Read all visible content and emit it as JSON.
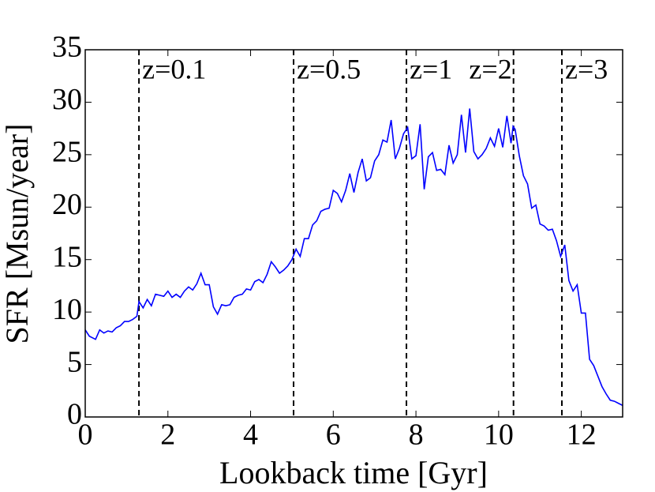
{
  "chart_data": {
    "type": "line",
    "x_label": "Lookback time [Gyr]",
    "y_label": "SFR [Msun/year]",
    "xlim": [
      0,
      13
    ],
    "ylim": [
      0,
      35
    ],
    "xticks": [
      0,
      2,
      4,
      6,
      8,
      10,
      12
    ],
    "yticks": [
      0,
      5,
      10,
      15,
      20,
      25,
      30,
      35
    ],
    "vlines": [
      {
        "x": 1.3,
        "label": "z=0.1"
      },
      {
        "x": 5.04,
        "label": "z=0.5"
      },
      {
        "x": 7.77,
        "label": "z=1"
      },
      {
        "x": 10.36,
        "label": "z=2"
      },
      {
        "x": 11.53,
        "label": "z=3"
      }
    ],
    "x": [
      0.0,
      0.1,
      0.25,
      0.35,
      0.45,
      0.55,
      0.65,
      0.75,
      0.85,
      0.95,
      1.05,
      1.15,
      1.25,
      1.3,
      1.4,
      1.5,
      1.6,
      1.7,
      1.8,
      1.9,
      2.0,
      2.1,
      2.2,
      2.3,
      2.4,
      2.5,
      2.6,
      2.7,
      2.8,
      2.9,
      3.0,
      3.1,
      3.2,
      3.3,
      3.4,
      3.5,
      3.6,
      3.7,
      3.8,
      3.9,
      4.0,
      4.1,
      4.2,
      4.3,
      4.4,
      4.5,
      4.6,
      4.7,
      4.8,
      4.9,
      5.0,
      5.1,
      5.2,
      5.3,
      5.4,
      5.5,
      5.6,
      5.7,
      5.8,
      5.9,
      6.0,
      6.1,
      6.2,
      6.3,
      6.4,
      6.5,
      6.6,
      6.7,
      6.8,
      6.9,
      7.0,
      7.1,
      7.2,
      7.3,
      7.4,
      7.5,
      7.6,
      7.7,
      7.8,
      7.9,
      8.0,
      8.1,
      8.2,
      8.3,
      8.4,
      8.5,
      8.6,
      8.7,
      8.8,
      8.9,
      9.0,
      9.1,
      9.2,
      9.3,
      9.4,
      9.5,
      9.6,
      9.7,
      9.8,
      9.9,
      10.0,
      10.1,
      10.2,
      10.3,
      10.35,
      10.4,
      10.5,
      10.6,
      10.7,
      10.8,
      10.9,
      11.0,
      11.1,
      11.2,
      11.3,
      11.4,
      11.5,
      11.6,
      11.7,
      11.8,
      11.9,
      12.0,
      12.1,
      12.2,
      12.3,
      12.4,
      12.5,
      12.6,
      12.7,
      12.8,
      12.9,
      13.0
    ],
    "series": [
      {
        "color": "#0000ff",
        "values": [
          8.3,
          7.7,
          7.4,
          8.3,
          8.0,
          8.2,
          8.1,
          8.5,
          8.7,
          9.1,
          9.1,
          9.3,
          9.6,
          11.0,
          10.4,
          11.2,
          10.6,
          11.7,
          11.6,
          11.5,
          12.0,
          11.4,
          11.7,
          11.4,
          12.0,
          12.4,
          12.1,
          12.7,
          13.7,
          12.6,
          12.6,
          10.5,
          9.8,
          10.7,
          10.6,
          10.7,
          11.4,
          11.6,
          11.7,
          12.2,
          12.1,
          12.9,
          13.1,
          12.8,
          13.6,
          14.8,
          14.3,
          13.7,
          14.0,
          14.4,
          15.0,
          16.0,
          15.3,
          17.0,
          17.0,
          18.3,
          18.7,
          19.6,
          19.8,
          19.9,
          21.6,
          21.3,
          20.5,
          21.6,
          23.2,
          21.4,
          23.3,
          24.6,
          22.5,
          22.8,
          24.4,
          25.0,
          26.4,
          26.2,
          28.3,
          24.6,
          25.6,
          27.0,
          27.6,
          24.6,
          24.9,
          27.9,
          21.7,
          24.8,
          25.2,
          23.5,
          23.6,
          23.1,
          25.9,
          24.2,
          25.0,
          28.8,
          25.2,
          29.4,
          25.3,
          24.6,
          25.0,
          25.6,
          26.6,
          25.8,
          27.5,
          25.7,
          28.7,
          26.1,
          27.7,
          27.4,
          24.9,
          23.0,
          22.2,
          19.9,
          20.2,
          18.4,
          18.2,
          17.8,
          17.9,
          16.8,
          15.3,
          16.4,
          13.0,
          12.0,
          12.6,
          9.9,
          9.9,
          5.5,
          4.9,
          3.9,
          2.9,
          2.2,
          1.6,
          1.5,
          1.3,
          1.1
        ]
      }
    ]
  }
}
